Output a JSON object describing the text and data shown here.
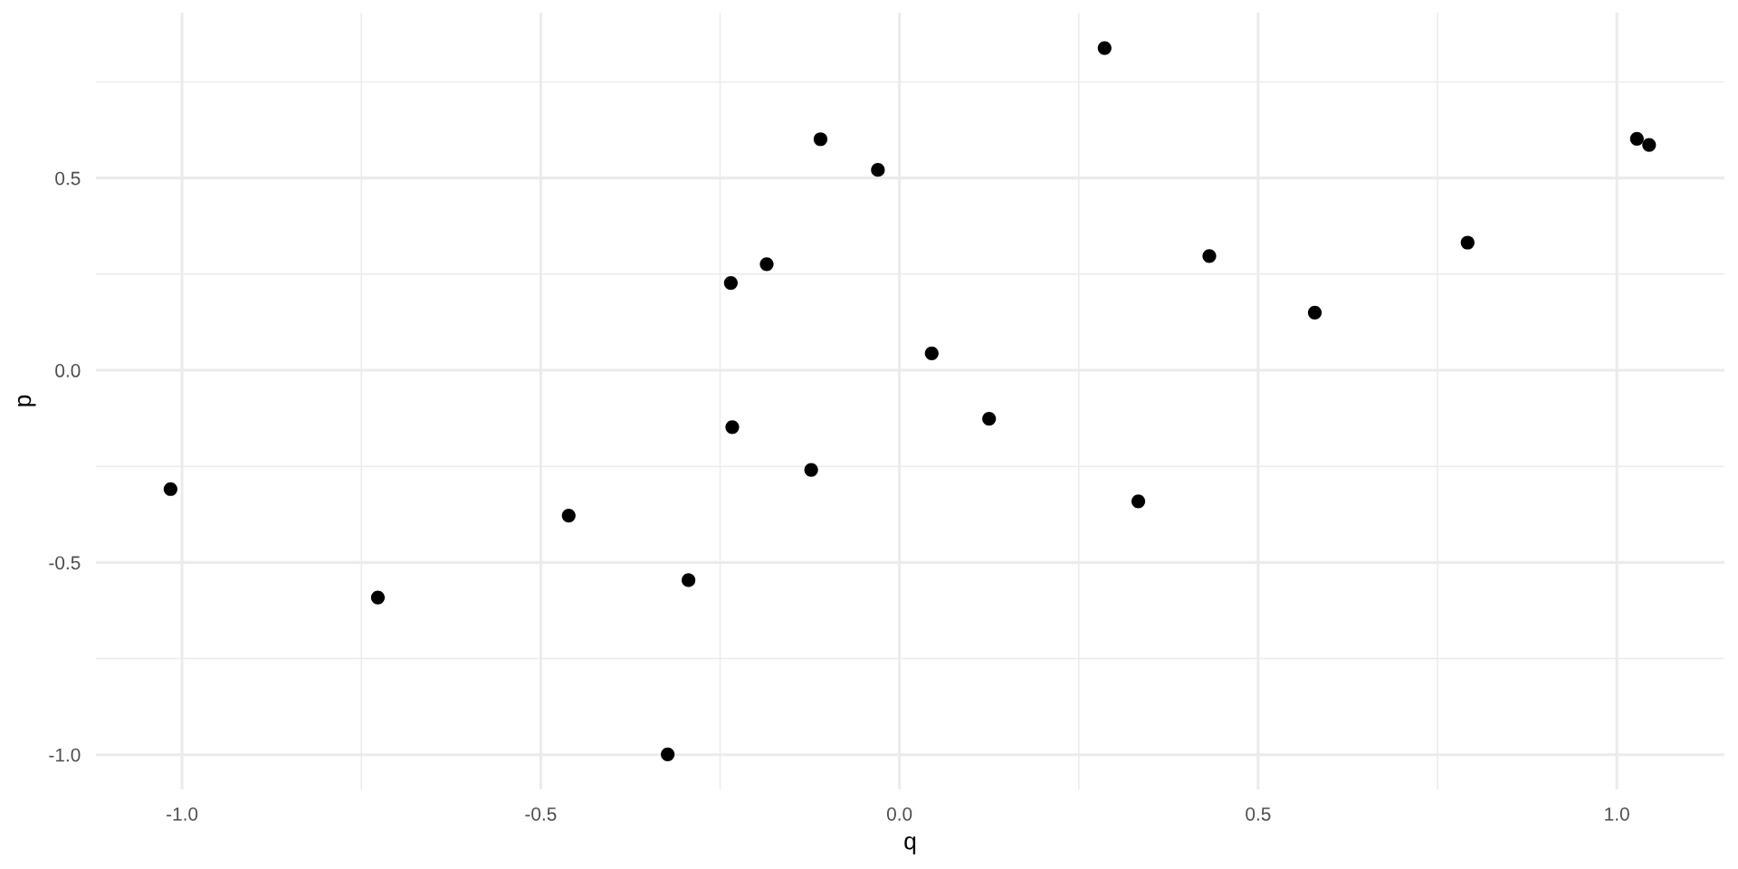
{
  "chart_data": {
    "type": "scatter",
    "xlabel": "q",
    "ylabel": "p",
    "series": [
      {
        "color": "#000000",
        "x": [
          -1.016,
          -0.727,
          -0.461,
          -0.323,
          -0.294,
          -0.235,
          -0.233,
          -0.185,
          -0.123,
          -0.11,
          -0.03,
          0.045,
          0.125,
          0.286,
          0.333,
          0.432,
          0.579,
          0.792,
          1.028,
          1.045
        ],
        "values": [
          -0.309,
          -0.591,
          -0.378,
          -0.999,
          -0.546,
          0.227,
          -0.148,
          0.276,
          -0.259,
          0.601,
          0.521,
          0.044,
          -0.126,
          0.838,
          -0.341,
          0.297,
          0.15,
          0.332,
          0.602,
          0.586
        ]
      }
    ],
    "xlim": [
      -1.12,
      1.15
    ],
    "ylim": [
      -1.09,
      0.93
    ],
    "xticks": [
      {
        "value": -1,
        "label": "-1.0"
      },
      {
        "value": -0.75,
        "label": null
      },
      {
        "value": -0.5,
        "label": "-0.5"
      },
      {
        "value": -0.25,
        "label": null
      },
      {
        "value": 0,
        "label": "0.0"
      },
      {
        "value": 0.25,
        "label": null
      },
      {
        "value": 0.5,
        "label": "0.5"
      },
      {
        "value": 0.75,
        "label": null
      },
      {
        "value": 1,
        "label": "1.0"
      }
    ],
    "yticks": [
      {
        "value": -1,
        "label": "-1.0"
      },
      {
        "value": -0.75,
        "label": null
      },
      {
        "value": -0.5,
        "label": "-0.5"
      },
      {
        "value": -0.25,
        "label": null
      },
      {
        "value": 0,
        "label": "0.0"
      },
      {
        "value": 0.25,
        "label": null
      },
      {
        "value": 0.5,
        "label": "0.5"
      },
      {
        "value": 0.75,
        "label": null
      }
    ],
    "grid": true,
    "marker": "circle"
  }
}
